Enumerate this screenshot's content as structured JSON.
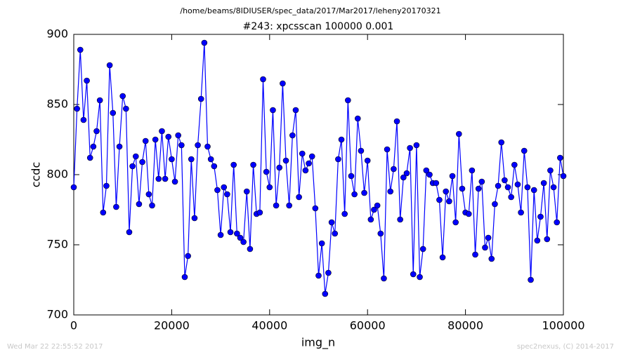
{
  "chart_data": {
    "type": "line",
    "suptitle": "/home/beams/8IDIUSER/spec_data/2017/Mar2017/leheny20170321",
    "title": "#243: xpcsscan 100000 0.001",
    "xlabel": "img_n",
    "ylabel": "ccdc",
    "footer_left": "Wed Mar 22 22:55:52 2017",
    "footer_right": "spec2nexus, (C) 2014-2017",
    "xlim": [
      0,
      100000
    ],
    "ylim": [
      700,
      900
    ],
    "xticks": [
      0,
      20000,
      40000,
      60000,
      80000,
      100000
    ],
    "yticks": [
      700,
      750,
      800,
      850,
      900
    ],
    "grid": false,
    "x": [
      0,
      667,
      1333,
      2000,
      2667,
      3333,
      4000,
      4667,
      5333,
      6000,
      6667,
      7333,
      8000,
      8667,
      9333,
      10000,
      10667,
      11333,
      12000,
      12667,
      13333,
      14000,
      14667,
      15333,
      16000,
      16667,
      17333,
      18000,
      18667,
      19333,
      20000,
      20667,
      21333,
      22000,
      22667,
      23333,
      24000,
      24667,
      25333,
      26000,
      26667,
      27333,
      28000,
      28667,
      29333,
      30000,
      30667,
      31333,
      32000,
      32667,
      33333,
      34000,
      34667,
      35333,
      36000,
      36667,
      37333,
      38000,
      38667,
      39333,
      40000,
      40667,
      41333,
      42000,
      42667,
      43333,
      44000,
      44667,
      45333,
      46000,
      46667,
      47333,
      48000,
      48667,
      49333,
      50000,
      50667,
      51333,
      52000,
      52667,
      53333,
      54000,
      54667,
      55333,
      56000,
      56667,
      57333,
      58000,
      58667,
      59333,
      60000,
      60667,
      61333,
      62000,
      62667,
      63333,
      64000,
      64667,
      65333,
      66000,
      66667,
      67333,
      68000,
      68667,
      69333,
      70000,
      70667,
      71333,
      72000,
      72667,
      73333,
      74000,
      74667,
      75333,
      76000,
      76667,
      77333,
      78000,
      78667,
      79333,
      80000,
      80667,
      81333,
      82000,
      82667,
      83333,
      84000,
      84667,
      85333,
      86000,
      86667,
      87333,
      88000,
      88667,
      89333,
      90000,
      90667,
      91333,
      92000,
      92667,
      93333,
      94000,
      94667,
      95333,
      96000,
      96667,
      97333,
      98000,
      98667,
      99333,
      100000
    ],
    "series": [
      {
        "color": "#0000ff",
        "values": [
          791,
          847,
          889,
          839,
          867,
          812,
          820,
          831,
          853,
          773,
          792,
          878,
          844,
          777,
          820,
          856,
          847,
          759,
          806,
          813,
          779,
          809,
          824,
          786,
          778,
          825,
          797,
          831,
          797,
          827,
          811,
          795,
          828,
          821,
          727,
          742,
          811,
          769,
          821,
          854,
          894,
          820,
          811,
          806,
          789,
          757,
          791,
          786,
          759,
          807,
          758,
          755,
          752,
          788,
          747,
          807,
          772,
          773,
          868,
          802,
          791,
          846,
          778,
          805,
          865,
          810,
          778,
          828,
          846,
          784,
          815,
          803,
          808,
          813,
          776,
          728,
          751,
          715,
          730,
          766,
          758,
          811,
          825,
          772,
          853,
          799,
          786,
          840,
          817,
          787,
          810,
          768,
          775,
          778,
          758,
          726,
          818,
          788,
          804,
          838,
          768,
          798,
          801,
          819,
          729,
          821,
          727,
          747,
          803,
          800,
          794,
          794,
          782,
          741,
          788,
          781,
          799,
          766,
          829,
          790,
          773,
          772,
          803,
          743,
          790,
          795,
          748,
          755,
          740,
          779,
          792,
          823,
          796,
          791,
          784,
          807,
          793,
          773,
          817,
          791,
          725,
          789,
          753,
          770,
          794,
          754,
          803,
          791,
          766,
          812,
          799
        ]
      }
    ]
  }
}
